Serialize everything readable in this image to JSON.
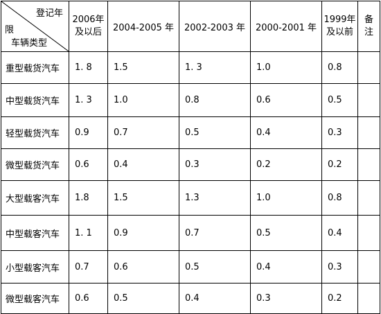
{
  "header": {
    "corner_top": "登记年",
    "corner_mid": "限",
    "corner_bottom": "车辆类型",
    "columns": [
      "2006年\n及以后",
      "2004-2005 年",
      "2002-2003 年",
      "2000-2001 年",
      "1999年\n及以前",
      "备\n注"
    ]
  },
  "rows": [
    {
      "type": "重型载货汽车",
      "values": [
        "1. 8",
        "1.5",
        "1. 3",
        "1.0",
        "0.8",
        ""
      ]
    },
    {
      "type": "中型载货汽车",
      "values": [
        "1. 3",
        "1.0",
        "0.8",
        "0.6",
        "0.5",
        ""
      ]
    },
    {
      "type": "轻型载货汽车",
      "values": [
        "0.9",
        "0.7",
        "0.5",
        "0.4",
        "0.3",
        ""
      ]
    },
    {
      "type": "微型载货汽车",
      "values": [
        "0.6",
        "0.4",
        "0.3",
        "0.2",
        "0.2",
        ""
      ]
    },
    {
      "type": "大型载客汽车",
      "values": [
        "1.8",
        "1.5",
        "1.3",
        "1.0",
        "0.8",
        ""
      ]
    },
    {
      "type": "中型载客汽车",
      "values": [
        "1. 1",
        "0.9",
        "0.7",
        "0.5",
        "0.4",
        ""
      ]
    },
    {
      "type": "小型载客汽车",
      "values": [
        "0.7",
        "0.6",
        "0.5",
        "0.4",
        "0.3",
        ""
      ]
    },
    {
      "type": "微型载客汽车",
      "values": [
        "0.6",
        "0.5",
        "0.4",
        "0.3",
        "0.2",
        ""
      ]
    }
  ]
}
